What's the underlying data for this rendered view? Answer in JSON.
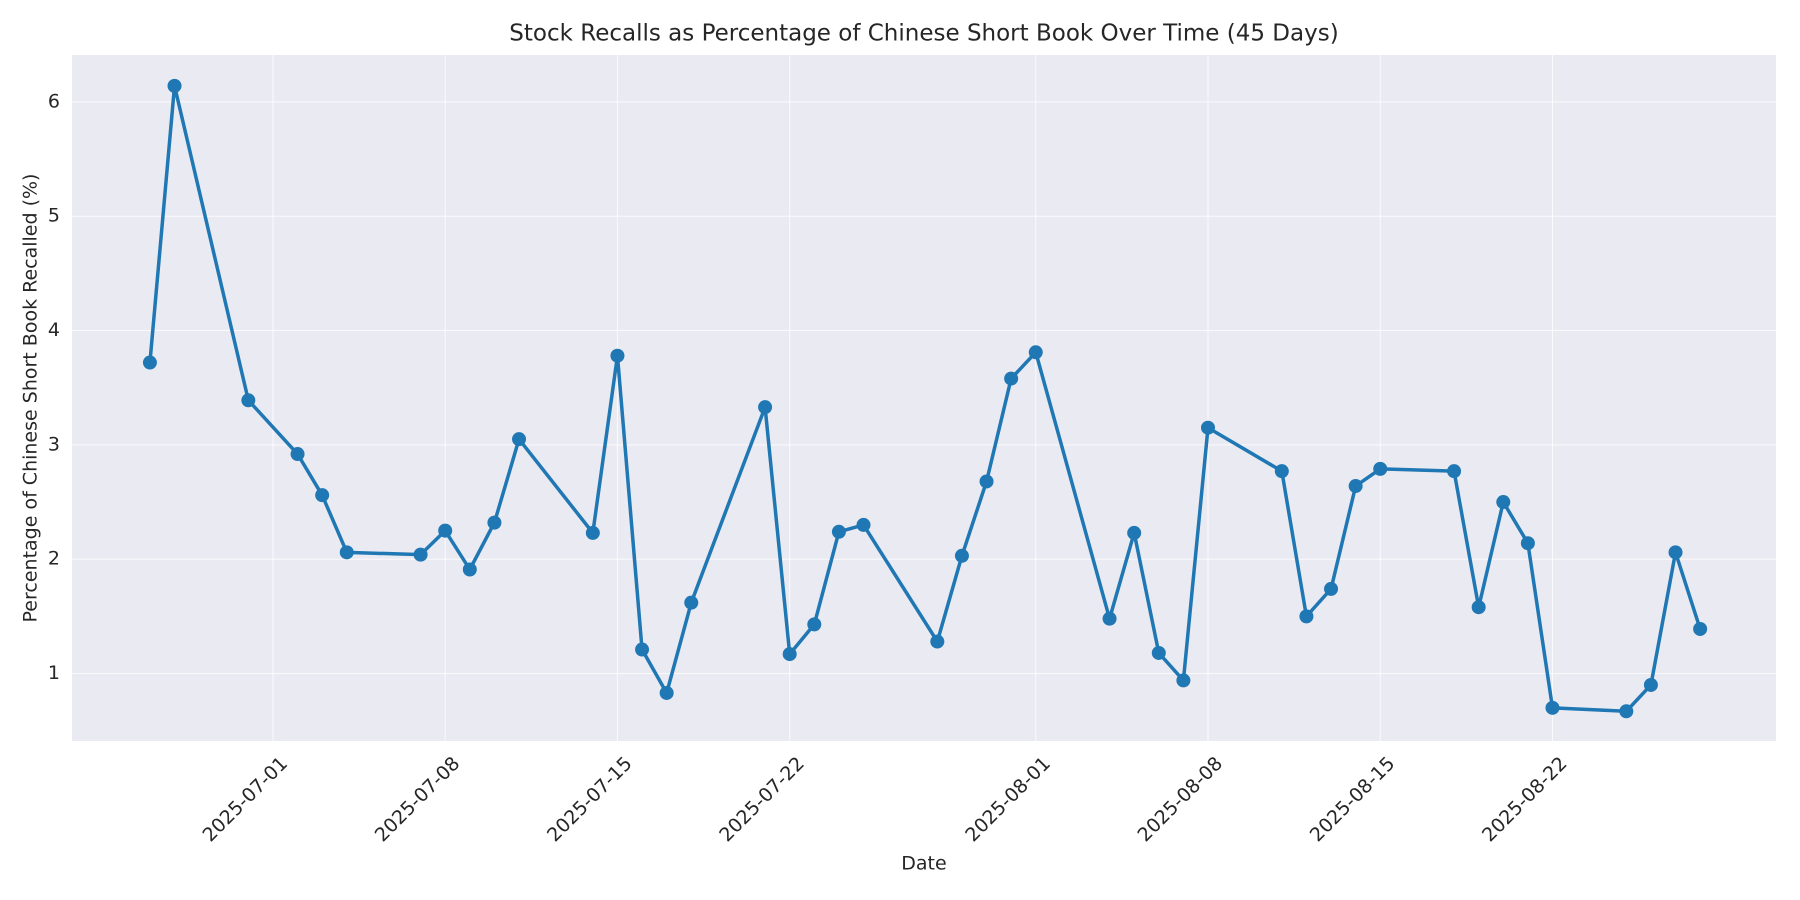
{
  "chart_data": {
    "type": "line",
    "title": "Stock Recalls as Percentage of Chinese Short Book Over Time (45 Days)",
    "x_label": "Date",
    "y_label": "Percentage of Chinese Short Book Recalled (%)",
    "x": [
      "2025-06-26",
      "2025-06-27",
      "2025-06-30",
      "2025-07-02",
      "2025-07-03",
      "2025-07-04",
      "2025-07-07",
      "2025-07-08",
      "2025-07-09",
      "2025-07-10",
      "2025-07-11",
      "2025-07-14",
      "2025-07-15",
      "2025-07-16",
      "2025-07-17",
      "2025-07-18",
      "2025-07-21",
      "2025-07-22",
      "2025-07-23",
      "2025-07-24",
      "2025-07-25",
      "2025-07-28",
      "2025-07-29",
      "2025-07-30",
      "2025-07-31",
      "2025-08-01",
      "2025-08-04",
      "2025-08-05",
      "2025-08-06",
      "2025-08-07",
      "2025-08-08",
      "2025-08-11",
      "2025-08-12",
      "2025-08-13",
      "2025-08-14",
      "2025-08-15",
      "2025-08-18",
      "2025-08-19",
      "2025-08-20",
      "2025-08-21",
      "2025-08-22",
      "2025-08-25",
      "2025-08-26",
      "2025-08-27",
      "2025-08-28"
    ],
    "series": [
      {
        "name": "Recall %",
        "color": "#1f77b4",
        "values": [
          3.72,
          6.14,
          3.39,
          2.92,
          2.56,
          2.06,
          2.04,
          2.25,
          1.91,
          2.32,
          3.05,
          2.23,
          3.78,
          1.21,
          0.83,
          1.62,
          3.33,
          1.17,
          1.43,
          2.24,
          2.3,
          1.28,
          2.03,
          2.68,
          3.58,
          3.81,
          1.48,
          2.23,
          1.18,
          0.94,
          3.15,
          2.77,
          1.5,
          1.74,
          2.64,
          2.79,
          2.77,
          1.58,
          2.5,
          2.14,
          0.7,
          0.67,
          0.9,
          2.06,
          1.39
        ]
      }
    ],
    "xlim": [
      "2025-06-22T20:00Z",
      "2025-08-31T02:00Z"
    ],
    "xticks": [
      "2025-07-01",
      "2025-07-08",
      "2025-07-15",
      "2025-07-22",
      "2025-08-01",
      "2025-08-08",
      "2025-08-15",
      "2025-08-22"
    ],
    "ylim": [
      0.41,
      6.41
    ],
    "yticks": [
      1,
      2,
      3,
      4,
      5,
      6
    ],
    "grid": true
  }
}
